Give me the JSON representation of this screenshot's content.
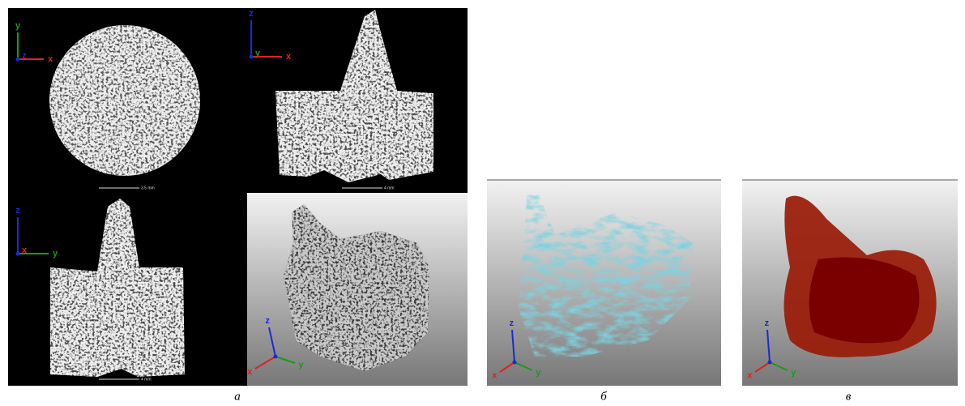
{
  "panels": [
    {
      "label": "а",
      "views": [
        {
          "axes": [
            "y",
            "z",
            "x"
          ],
          "scale": "3.5 mm"
        },
        {
          "axes": [
            "z",
            "y",
            "x"
          ],
          "scale": "4 mm"
        },
        {
          "axes": [
            "z",
            "x",
            "y"
          ],
          "scale": "4 mm"
        },
        {
          "axes": [
            "z",
            "x",
            "y"
          ]
        }
      ]
    },
    {
      "label": "б",
      "views": [
        {
          "axes": [
            "z",
            "x",
            "y"
          ]
        }
      ]
    },
    {
      "label": "в",
      "views": [
        {
          "axes": [
            "z",
            "x",
            "y"
          ]
        }
      ]
    }
  ]
}
